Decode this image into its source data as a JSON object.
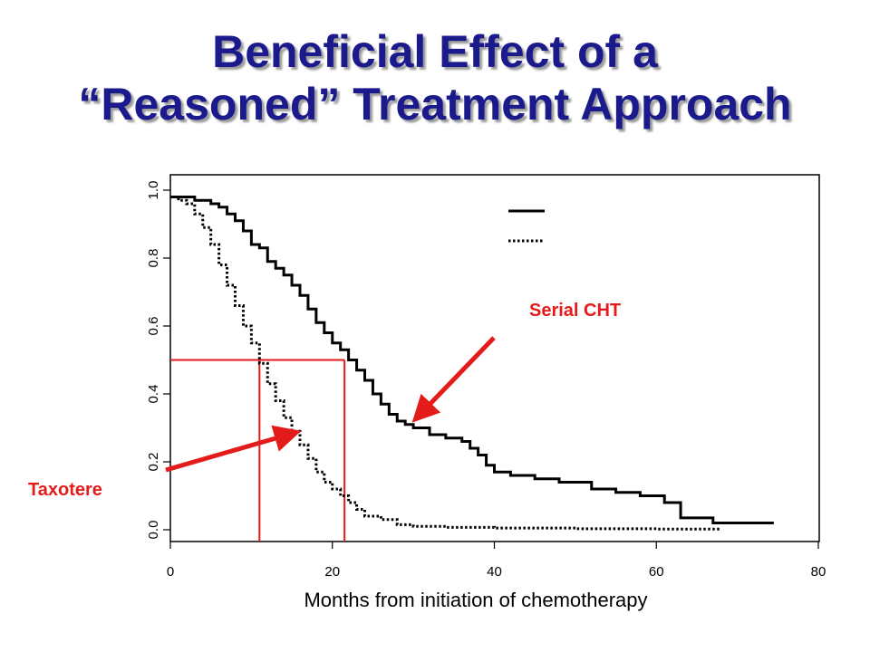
{
  "slide": {
    "title_line1": "Beneficial Effect of a",
    "title_line2": "“Reasoned” Treatment Approach"
  },
  "annotations": {
    "serial_label": "Serial CHT",
    "taxotere_label": "Taxotere",
    "color": "#e31b1b"
  },
  "chart_data": {
    "type": "line",
    "title": "",
    "xlabel": "Months from initiation of chemotherapy",
    "ylabel": "",
    "xlim": [
      0,
      80
    ],
    "ylim": [
      0,
      1.0
    ],
    "xticks": [
      "0",
      "20",
      "40",
      "60",
      "80"
    ],
    "yticks": [
      "0.0",
      "0.2",
      "0.4",
      "0.6",
      "0.8",
      "1.0"
    ],
    "grid": false,
    "legend_position": "top-right",
    "median_reference": {
      "y": 0.5,
      "x_values": [
        11,
        21.5
      ],
      "color": "#e31b1b"
    },
    "series": [
      {
        "style": "solid",
        "color": "#000000",
        "x": [
          0,
          3,
          5,
          6,
          7,
          8,
          9,
          10,
          11,
          12,
          13,
          14,
          15,
          16,
          17,
          18,
          19,
          20,
          21,
          22,
          23,
          24,
          25,
          26,
          27,
          28,
          29,
          30,
          32,
          34,
          36,
          37,
          38,
          39,
          40,
          42,
          45,
          48,
          52,
          55,
          58,
          61,
          63,
          67,
          74.5
        ],
        "y": [
          0.98,
          0.97,
          0.96,
          0.95,
          0.93,
          0.91,
          0.88,
          0.84,
          0.83,
          0.79,
          0.77,
          0.75,
          0.72,
          0.69,
          0.65,
          0.61,
          0.58,
          0.55,
          0.53,
          0.5,
          0.47,
          0.44,
          0.4,
          0.37,
          0.34,
          0.32,
          0.31,
          0.3,
          0.28,
          0.27,
          0.26,
          0.24,
          0.22,
          0.19,
          0.17,
          0.16,
          0.15,
          0.14,
          0.12,
          0.11,
          0.1,
          0.08,
          0.035,
          0.02,
          0.02
        ]
      },
      {
        "style": "dotted",
        "color": "#000000",
        "x": [
          0,
          1,
          2,
          3,
          4,
          5,
          6,
          7,
          8,
          9,
          10,
          11,
          12,
          13,
          14,
          15,
          16,
          17,
          18,
          19,
          20,
          21,
          22,
          23,
          24,
          26,
          28,
          30,
          34,
          40,
          50,
          60,
          68
        ],
        "y": [
          0.98,
          0.97,
          0.96,
          0.93,
          0.89,
          0.84,
          0.78,
          0.72,
          0.66,
          0.6,
          0.55,
          0.49,
          0.43,
          0.38,
          0.33,
          0.29,
          0.25,
          0.21,
          0.17,
          0.14,
          0.12,
          0.1,
          0.08,
          0.06,
          0.04,
          0.03,
          0.015,
          0.01,
          0.007,
          0.005,
          0.003,
          0.002,
          0.002
        ]
      }
    ]
  }
}
